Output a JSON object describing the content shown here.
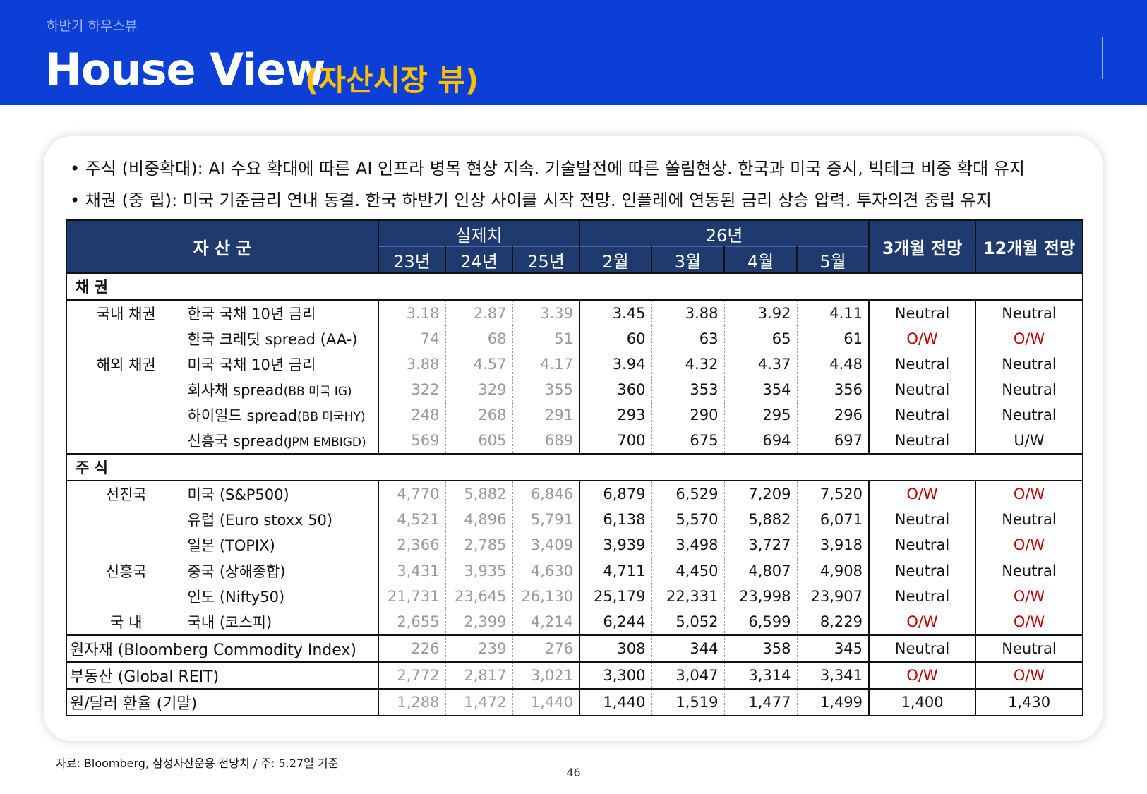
{
  "header": {
    "subtitle": "하반기 하우스뷰",
    "title": "House View",
    "title_sub": "(자산시장 뷰)"
  },
  "bullets": [
    "• 주식 (비중확대): AI 수요 확대에 따른 AI 인프라 병목 현상 지속. 기술발전에 따른 쏠림현상. 한국과 미국 증시, 빅테크 비중 확대 유지",
    "• 채권 (중      립): 미국 기준금리 연내 동결. 한국 하반기 인상 사이클 시작 전망. 인플레에 연동된 금리 상승 압력. 투자의견 중립 유지"
  ],
  "table": {
    "header": {
      "asset_class": "자 산 군",
      "actual": "실제치",
      "year26": "26년",
      "outlook3": "3개월 전망",
      "outlook12": "12개월 전망",
      "cols": [
        "23년",
        "24년",
        "25년",
        "2월",
        "3월",
        "4월",
        "5월"
      ]
    },
    "sections": {
      "bond": "채    권",
      "equity": "주    식"
    },
    "groups": {
      "domestic_bond": "국내 채권",
      "foreign_bond": "해외 채권",
      "developed": "선진국",
      "emerging": "신흥국",
      "domestic": "국    내"
    },
    "rows": [
      {
        "name": "한국 국채 10년 금리",
        "v": [
          "3.18",
          "2.87",
          "3.39",
          "3.45",
          "3.88",
          "3.92",
          "4.11"
        ],
        "o3": "Neutral",
        "o12": "Neutral"
      },
      {
        "name": "한국 크레딧 spread (AA-)",
        "v": [
          "74",
          "68",
          "51",
          "60",
          "63",
          "65",
          "61"
        ],
        "o3": "O/W",
        "o12": "O/W"
      },
      {
        "name": "미국 국채 10년 금리",
        "v": [
          "3.88",
          "4.57",
          "4.17",
          "3.94",
          "4.32",
          "4.37",
          "4.48"
        ],
        "o3": "Neutral",
        "o12": "Neutral"
      },
      {
        "name": "회사채 spread",
        "name_small": "(BB 미국 IG)",
        "v": [
          "322",
          "329",
          "355",
          "360",
          "353",
          "354",
          "356"
        ],
        "o3": "Neutral",
        "o12": "Neutral"
      },
      {
        "name": "하이일드 spread",
        "name_small": "(BB 미국HY)",
        "v": [
          "248",
          "268",
          "291",
          "293",
          "290",
          "295",
          "296"
        ],
        "o3": "Neutral",
        "o12": "Neutral"
      },
      {
        "name": "신흥국 spread",
        "name_small": "(JPM EMBIGD)",
        "v": [
          "569",
          "605",
          "689",
          "700",
          "675",
          "694",
          "697"
        ],
        "o3": "Neutral",
        "o12": "U/W"
      },
      {
        "name": "미국 (S&P500)",
        "v": [
          "4,770",
          "5,882",
          "6,846",
          "6,879",
          "6,529",
          "7,209",
          "7,520"
        ],
        "o3": "O/W",
        "o12": "O/W"
      },
      {
        "name": "유럽 (Euro stoxx 50)",
        "v": [
          "4,521",
          "4,896",
          "5,791",
          "6,138",
          "5,570",
          "5,882",
          "6,071"
        ],
        "o3": "Neutral",
        "o12": "Neutral"
      },
      {
        "name": "일본 (TOPIX)",
        "v": [
          "2,366",
          "2,785",
          "3,409",
          "3,939",
          "3,498",
          "3,727",
          "3,918"
        ],
        "o3": "Neutral",
        "o12": "O/W"
      },
      {
        "name": "중국 (상해종합)",
        "v": [
          "3,431",
          "3,935",
          "4,630",
          "4,711",
          "4,450",
          "4,807",
          "4,908"
        ],
        "o3": "Neutral",
        "o12": "Neutral"
      },
      {
        "name": "인도 (Nifty50)",
        "v": [
          "21,731",
          "23,645",
          "26,130",
          "25,179",
          "22,331",
          "23,998",
          "23,907"
        ],
        "o3": "Neutral",
        "o12": "O/W"
      },
      {
        "name": "국내 (코스피)",
        "v": [
          "2,655",
          "2,399",
          "4,214",
          "6,244",
          "5,052",
          "6,599",
          "8,229"
        ],
        "o3": "O/W",
        "o12": "O/W"
      },
      {
        "name": "원자재 (Bloomberg Commodity Index)",
        "v": [
          "226",
          "239",
          "276",
          "308",
          "344",
          "358",
          "345"
        ],
        "o3": "Neutral",
        "o12": "Neutral"
      },
      {
        "name": "부동산 (Global REIT)",
        "v": [
          "2,772",
          "2,817",
          "3,021",
          "3,300",
          "3,047",
          "3,314",
          "3,341"
        ],
        "o3": "O/W",
        "o12": "O/W"
      },
      {
        "name": "원/달러 환율 (기말)",
        "v": [
          "1,288",
          "1,472",
          "1,440",
          "1,440",
          "1,519",
          "1,477",
          "1,499"
        ],
        "o3": "1,400",
        "o12": "1,430"
      }
    ]
  },
  "footnote": "자료: Bloomberg, 삼성자산운용 전망치 / 주: 5.27일 기준",
  "page_number": "46",
  "colors": {
    "header_bar": "#0b3fd6",
    "accent": "#ffc000",
    "table_header": "#1f3a6e",
    "overweight": "#c00000"
  }
}
